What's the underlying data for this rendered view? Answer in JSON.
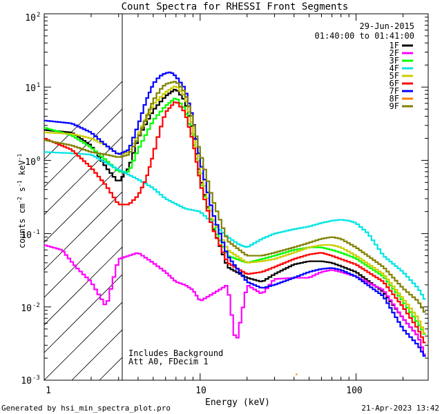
{
  "chart_data": {
    "type": "line",
    "title": "Count Spectra for RHESSI Front Segments",
    "xlabel": "Energy (keV)",
    "ylabel": "counts cm^-2 s^-1 keV^-1",
    "ylabel_parts": {
      "base": "counts cm",
      "exp1": "-2",
      "mid": " s",
      "exp2": "-1",
      "mid2": " keV",
      "exp3": "-1"
    },
    "xscale": "log",
    "yscale": "log",
    "xlim": [
      1,
      290
    ],
    "ylim": [
      0.001,
      100
    ],
    "x_tick_labels": [
      "1",
      "10",
      "100"
    ],
    "y_tick_labels": [
      {
        "base": "10",
        "exp": "2"
      },
      {
        "base": "10",
        "exp": "1"
      },
      {
        "base": "10",
        "exp": "0"
      },
      {
        "base": "10",
        "exp": "-1"
      },
      {
        "base": "10",
        "exp": "-2"
      },
      {
        "base": "10",
        "exp": "-3"
      }
    ],
    "date": "29-Jun-2015",
    "time_range": "01:40:00 to 01:41:00",
    "legend_position": "top-right",
    "hatched_region_below_keV": 3,
    "annotations": [
      "Includes Background",
      "Att A0, FDecim 1"
    ],
    "series": [
      {
        "name": "1F",
        "color": "#000000",
        "x": [
          1,
          1.5,
          2,
          2.5,
          3,
          3.5,
          4,
          5,
          6,
          7,
          8,
          9,
          10,
          12,
          15,
          20,
          25,
          30,
          40,
          50,
          60,
          70,
          80,
          100,
          150,
          200,
          250,
          280
        ],
        "y": [
          2.6,
          2.4,
          1.6,
          0.8,
          0.5,
          0.8,
          2.0,
          4.8,
          7.5,
          9.5,
          6.5,
          2.5,
          0.6,
          0.13,
          0.035,
          0.025,
          0.022,
          0.028,
          0.038,
          0.042,
          0.042,
          0.04,
          0.036,
          0.03,
          0.016,
          0.007,
          0.004,
          0.002
        ]
      },
      {
        "name": "2F",
        "color": "#ff00ff",
        "x": [
          1,
          1.3,
          1.6,
          2,
          2.5,
          3,
          3.5,
          4,
          5,
          6,
          7,
          8,
          9,
          10,
          12,
          15,
          17,
          20,
          25,
          30,
          40,
          50,
          60,
          70,
          80,
          100,
          150,
          200,
          250,
          280
        ],
        "y": [
          0.07,
          0.06,
          0.035,
          0.022,
          0.01,
          0.045,
          0.05,
          0.055,
          0.04,
          0.03,
          0.022,
          0.02,
          0.017,
          0.012,
          0.015,
          0.02,
          0.003,
          0.02,
          0.015,
          0.024,
          0.025,
          0.025,
          0.03,
          0.032,
          0.03,
          0.026,
          0.017,
          0.007,
          0.004,
          0.002
        ]
      },
      {
        "name": "3F",
        "color": "#00ff00",
        "x": [
          1,
          1.5,
          2,
          2.5,
          3,
          3.5,
          4,
          5,
          6,
          7,
          8,
          9,
          10,
          12,
          15,
          20,
          25,
          30,
          40,
          50,
          60,
          70,
          80,
          100,
          150,
          200,
          250,
          280
        ],
        "y": [
          2.8,
          2.2,
          1.5,
          1.0,
          0.7,
          0.7,
          1.4,
          3.5,
          5.5,
          7.2,
          5.0,
          2.0,
          0.55,
          0.13,
          0.05,
          0.04,
          0.045,
          0.05,
          0.06,
          0.065,
          0.065,
          0.06,
          0.055,
          0.046,
          0.026,
          0.012,
          0.006,
          0.004
        ]
      },
      {
        "name": "4F",
        "color": "#00e5e5",
        "x": [
          1,
          1.5,
          2,
          3,
          4,
          5,
          6,
          8,
          10,
          12,
          15,
          18,
          20,
          25,
          30,
          40,
          50,
          60,
          70,
          80,
          90,
          100,
          120,
          150,
          200,
          250,
          280
        ],
        "y": [
          1.3,
          1.25,
          1.2,
          0.75,
          0.55,
          0.42,
          0.3,
          0.22,
          0.2,
          0.14,
          0.09,
          0.07,
          0.065,
          0.085,
          0.1,
          0.115,
          0.125,
          0.14,
          0.15,
          0.155,
          0.15,
          0.14,
          0.1,
          0.05,
          0.03,
          0.018,
          0.012
        ]
      },
      {
        "name": "5F",
        "color": "#cccc00",
        "x": [
          1,
          1.5,
          2,
          2.5,
          3,
          3.5,
          4,
          5,
          6,
          7,
          8,
          9,
          10,
          12,
          15,
          20,
          25,
          30,
          40,
          50,
          60,
          70,
          80,
          100,
          150,
          200,
          250,
          280
        ],
        "y": [
          2.4,
          2.3,
          2.0,
          1.6,
          1.2,
          1.3,
          2.2,
          5.8,
          8.5,
          10.5,
          7.5,
          2.8,
          0.8,
          0.17,
          0.06,
          0.04,
          0.042,
          0.045,
          0.055,
          0.065,
          0.07,
          0.07,
          0.065,
          0.05,
          0.028,
          0.013,
          0.007,
          0.004
        ]
      },
      {
        "name": "6F",
        "color": "#ff0000",
        "x": [
          1,
          1.5,
          2,
          2.5,
          3,
          3.5,
          4,
          4.5,
          5,
          5.5,
          6,
          7,
          8,
          9,
          10,
          12,
          15,
          20,
          25,
          30,
          40,
          50,
          60,
          70,
          80,
          100,
          150,
          200,
          250,
          280
        ],
        "y": [
          2.0,
          1.4,
          0.8,
          0.45,
          0.25,
          0.25,
          0.33,
          0.55,
          1.2,
          2.5,
          4.5,
          6.5,
          4.5,
          1.8,
          0.5,
          0.12,
          0.04,
          0.028,
          0.03,
          0.035,
          0.045,
          0.052,
          0.055,
          0.05,
          0.045,
          0.038,
          0.022,
          0.01,
          0.005,
          0.003
        ]
      },
      {
        "name": "7F",
        "color": "#0000ff",
        "x": [
          1,
          1.5,
          2,
          2.5,
          3,
          3.5,
          4,
          4.5,
          5,
          5.5,
          6,
          6.5,
          7,
          8,
          9,
          10,
          12,
          15,
          20,
          25,
          30,
          40,
          50,
          60,
          70,
          80,
          100,
          150,
          200,
          250,
          280
        ],
        "y": [
          3.5,
          3.2,
          2.4,
          1.6,
          1.2,
          1.4,
          3.0,
          6.5,
          11.0,
          14.0,
          15.5,
          16.0,
          14.0,
          9.5,
          3.8,
          1.0,
          0.2,
          0.05,
          0.022,
          0.018,
          0.02,
          0.025,
          0.03,
          0.033,
          0.034,
          0.032,
          0.026,
          0.014,
          0.005,
          0.003,
          0.002
        ]
      },
      {
        "name": "8F",
        "color": "#ff8000",
        "x": [
          41,
          42
        ],
        "y": [
          0.0012,
          0.0012
        ]
      },
      {
        "name": "9F",
        "color": "#808000",
        "x": [
          1,
          1.5,
          2,
          2.5,
          3,
          3.5,
          4,
          4.5,
          5,
          5.5,
          6,
          7,
          8,
          9,
          10,
          12,
          15,
          20,
          25,
          30,
          40,
          50,
          60,
          70,
          80,
          100,
          150,
          200,
          250,
          280
        ],
        "y": [
          1.9,
          1.6,
          1.3,
          1.2,
          1.1,
          1.2,
          2.0,
          3.8,
          6.5,
          9.0,
          11.0,
          12.0,
          8.5,
          3.5,
          1.3,
          0.3,
          0.08,
          0.05,
          0.05,
          0.055,
          0.065,
          0.075,
          0.085,
          0.09,
          0.085,
          0.065,
          0.035,
          0.018,
          0.012,
          0.008
        ]
      }
    ]
  },
  "footer": {
    "generated_by": "Generated by hsi_min_spectra_plot.pro",
    "timestamp": "21-Apr-2023 13:42"
  },
  "colors": {
    "background": "#ffffff",
    "axes": "#000000"
  }
}
